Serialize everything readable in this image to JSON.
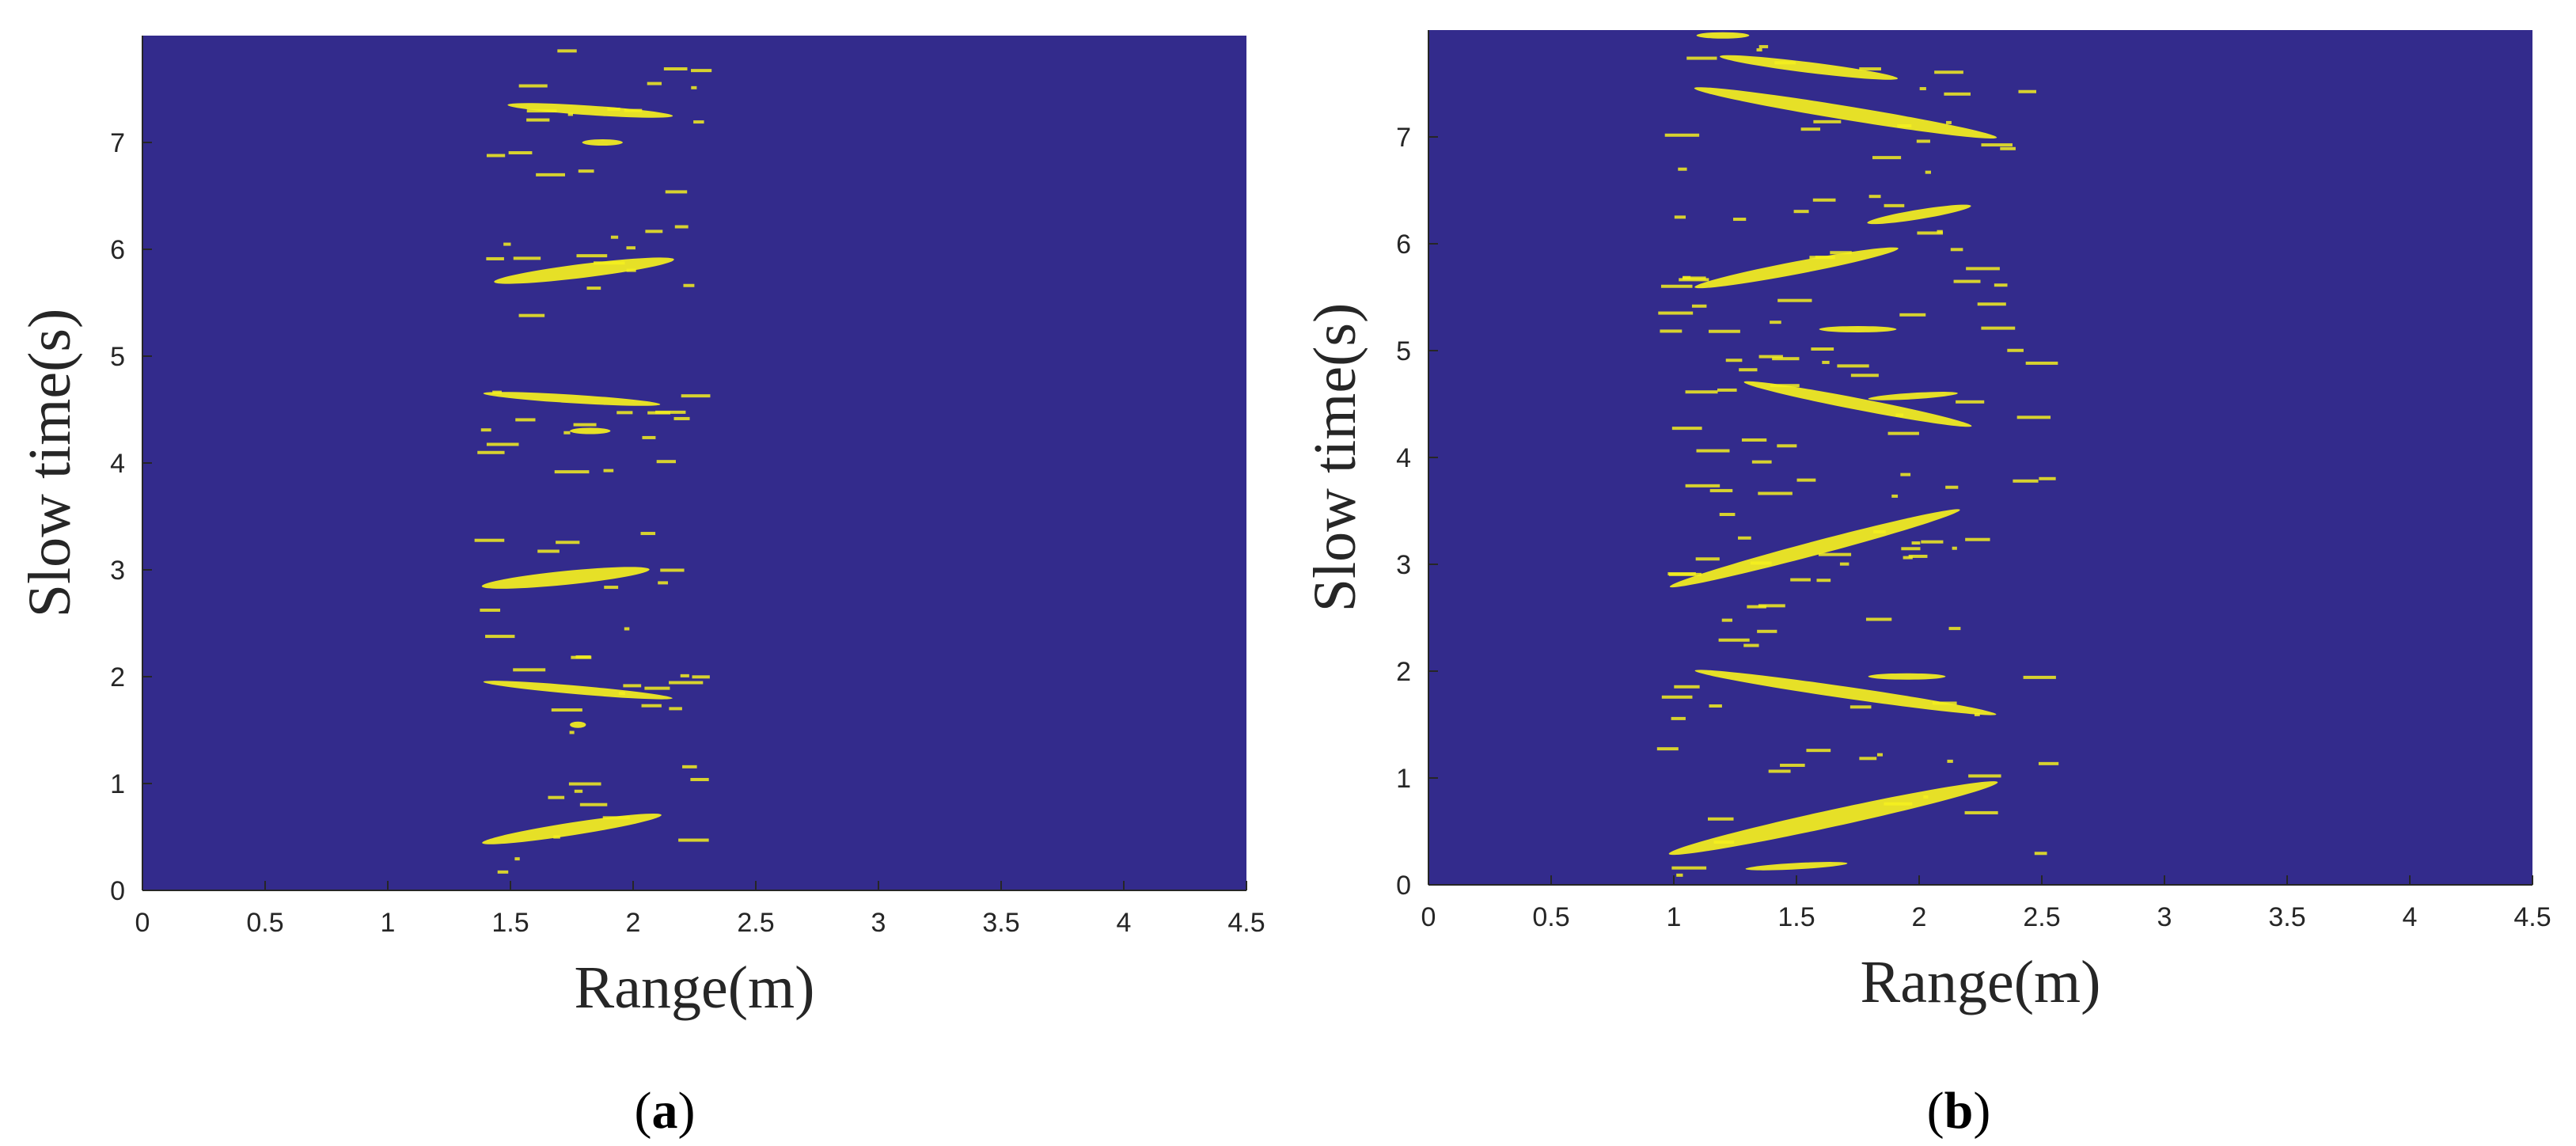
{
  "chart_data": [
    {
      "type": "heatmap",
      "caption": "a",
      "xlabel": "Range(m)",
      "ylabel": "Slow time(s)",
      "xlim": [
        0,
        4.5
      ],
      "ylim": [
        0,
        8
      ],
      "xticks": [
        0,
        0.5,
        1,
        1.5,
        2,
        2.5,
        3,
        3.5,
        4,
        4.5
      ],
      "xtick_labels": [
        "0",
        "0.5",
        "1",
        "1.5",
        "2",
        "2.5",
        "3",
        "3.5",
        "4",
        "4.5"
      ],
      "yticks": [
        0,
        1,
        2,
        3,
        4,
        5,
        6,
        7
      ],
      "ytick_labels": [
        "0",
        "1",
        "2",
        "3",
        "4",
        "5",
        "6",
        "7"
      ],
      "blobs": [
        {
          "r0": 1.5,
          "t0": 7.35,
          "r1": 2.15,
          "t1": 7.25,
          "width": 0.09
        },
        {
          "r0": 1.8,
          "t0": 7.0,
          "r1": 1.95,
          "t1": 7.0,
          "width": 0.04
        },
        {
          "r0": 1.45,
          "t0": 5.7,
          "r1": 2.15,
          "t1": 5.9,
          "width": 0.13
        },
        {
          "r0": 1.4,
          "t0": 4.65,
          "r1": 2.1,
          "t1": 4.55,
          "width": 0.08
        },
        {
          "r0": 1.75,
          "t0": 4.3,
          "r1": 1.9,
          "t1": 4.3,
          "width": 0.05
        },
        {
          "r0": 1.4,
          "t0": 2.85,
          "r1": 2.05,
          "t1": 3.0,
          "width": 0.13
        },
        {
          "r0": 1.4,
          "t0": 1.95,
          "r1": 2.15,
          "t1": 1.8,
          "width": 0.08
        },
        {
          "r0": 1.75,
          "t0": 1.55,
          "r1": 1.8,
          "t1": 1.55,
          "width": 0.05
        },
        {
          "r0": 1.4,
          "t0": 0.45,
          "r1": 2.1,
          "t1": 0.7,
          "width": 0.12
        }
      ],
      "speckle": {
        "r_min": 1.35,
        "r_max": 2.25,
        "count": 80,
        "seed": 7
      },
      "background_color": "#332b8c",
      "foreground_color": "#f5f01e"
    },
    {
      "type": "heatmap",
      "caption": "b",
      "xlabel": "Range(m)",
      "ylabel": "Slow time(s)",
      "xlim": [
        0,
        4.5
      ],
      "ylim": [
        0,
        8
      ],
      "xticks": [
        0,
        0.5,
        1,
        1.5,
        2,
        2.5,
        3,
        3.5,
        4,
        4.5
      ],
      "xtick_labels": [
        "0",
        "0.5",
        "1",
        "1.5",
        "2",
        "2.5",
        "3",
        "3.5",
        "4",
        "4.5"
      ],
      "yticks": [
        0,
        1,
        2,
        3,
        4,
        5,
        6,
        7
      ],
      "ytick_labels": [
        "0",
        "1",
        "2",
        "3",
        "4",
        "5",
        "6",
        "7"
      ],
      "blobs": [
        {
          "r0": 1.1,
          "t0": 7.45,
          "r1": 2.3,
          "t1": 7.0,
          "width": 0.13
        },
        {
          "r0": 1.2,
          "t0": 7.75,
          "r1": 1.9,
          "t1": 7.55,
          "width": 0.1
        },
        {
          "r0": 1.1,
          "t0": 7.95,
          "r1": 1.3,
          "t1": 7.95,
          "width": 0.04
        },
        {
          "r0": 1.8,
          "t0": 6.2,
          "r1": 2.2,
          "t1": 6.35,
          "width": 0.09
        },
        {
          "r0": 1.1,
          "t0": 5.6,
          "r1": 1.9,
          "t1": 5.95,
          "width": 0.12
        },
        {
          "r0": 1.6,
          "t0": 5.2,
          "r1": 1.9,
          "t1": 5.2,
          "width": 0.04
        },
        {
          "r0": 1.3,
          "t0": 4.7,
          "r1": 2.2,
          "t1": 4.3,
          "width": 0.11
        },
        {
          "r0": 1.8,
          "t0": 4.55,
          "r1": 2.15,
          "t1": 4.6,
          "width": 0.05
        },
        {
          "r0": 1.0,
          "t0": 2.8,
          "r1": 2.15,
          "t1": 3.5,
          "width": 0.13
        },
        {
          "r0": 1.1,
          "t0": 2.0,
          "r1": 2.3,
          "t1": 1.6,
          "width": 0.11
        },
        {
          "r0": 1.8,
          "t0": 1.95,
          "r1": 2.1,
          "t1": 1.95,
          "width": 0.04
        },
        {
          "r0": 1.0,
          "t0": 0.3,
          "r1": 2.3,
          "t1": 0.95,
          "width": 0.16
        },
        {
          "r0": 1.3,
          "t0": 0.15,
          "r1": 1.7,
          "t1": 0.2,
          "width": 0.05
        }
      ],
      "speckle": {
        "r_min": 0.9,
        "r_max": 2.5,
        "count": 130,
        "seed": 11
      },
      "background_color": "#332b8c",
      "foreground_color": "#f5f01e"
    }
  ]
}
